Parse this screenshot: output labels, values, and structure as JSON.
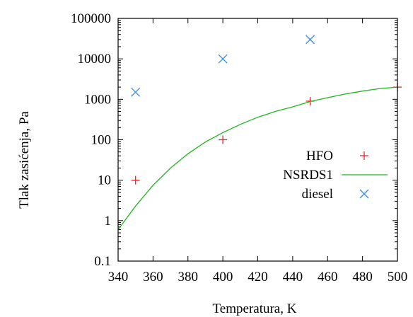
{
  "chart_data": {
    "type": "scatter",
    "xlabel": "Temperatura, K",
    "ylabel": "Tlak zasićenja, Pa",
    "xlim": [
      340,
      500
    ],
    "ylim": [
      0.1,
      100000
    ],
    "yscale": "log",
    "x_ticks": [
      "340",
      "360",
      "380",
      "400",
      "420",
      "440",
      "460",
      "480",
      "500"
    ],
    "y_ticks": [
      "0.1",
      "1",
      "10",
      "100",
      "1000",
      "10000",
      "100000"
    ],
    "grid": false,
    "legend_position": "right",
    "series": [
      {
        "name": "HFO",
        "kind": "points",
        "marker": "plus",
        "color": "#e8262a",
        "x": [
          350,
          400,
          450,
          500
        ],
        "y": [
          10,
          100,
          900,
          2000
        ]
      },
      {
        "name": "NSRDS1",
        "kind": "line",
        "color": "#1fb51f",
        "x": [
          340,
          350,
          360,
          370,
          380,
          390,
          400,
          410,
          420,
          430,
          440,
          450,
          460,
          470,
          480,
          490,
          500
        ],
        "y": [
          0.6,
          2.3,
          7.5,
          20,
          45,
          88,
          150,
          240,
          360,
          500,
          650,
          880,
          1100,
          1350,
          1600,
          1850,
          2000
        ]
      },
      {
        "name": "diesel",
        "kind": "points",
        "marker": "cross",
        "color": "#3a8ee6",
        "x": [
          350,
          400,
          450
        ],
        "y": [
          1500,
          10000,
          30000
        ]
      }
    ]
  }
}
